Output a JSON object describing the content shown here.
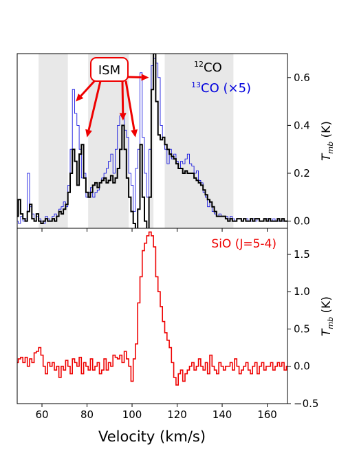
{
  "chart_data": [
    {
      "type": "line",
      "title": "",
      "ylabel": "T",
      "ylabel_sub": "mb",
      "ylabel_unit": " (K)",
      "xlim": [
        49,
        169
      ],
      "ylim": [
        -0.03,
        0.7
      ],
      "yticks": [
        0.0,
        0.2,
        0.4,
        0.6
      ],
      "ytick_labels": [
        "0.0",
        "0.2",
        "0.4",
        "0.6"
      ],
      "legend_position": "top-right",
      "legend": [
        {
          "sup": "12",
          "text": "CO",
          "color": "#000000"
        },
        {
          "sup": "13",
          "text": "CO (×5)",
          "color": "#0000dd"
        }
      ],
      "shaded_regions": [
        [
          58.5,
          71.5
        ],
        [
          80.5,
          98.5
        ],
        [
          108.0,
          109.5
        ],
        [
          114.5,
          145.0
        ]
      ],
      "annotation": {
        "text": "ISM",
        "color": "#ee0000",
        "arrow_targets": [
          [
            75,
            0.5
          ],
          [
            80,
            0.35
          ],
          [
            96,
            0.42
          ],
          [
            101.5,
            0.35
          ],
          [
            107.5,
            0.6
          ]
        ]
      },
      "series": [
        {
          "name": "12CO",
          "color": "#000000",
          "x": [
            49,
            50,
            51,
            52,
            53,
            54,
            55,
            56,
            57,
            58,
            59,
            60,
            61,
            62,
            63,
            64,
            65,
            66,
            67,
            68,
            69,
            70,
            71,
            72,
            73,
            74,
            75,
            76,
            77,
            78,
            79,
            80,
            81,
            82,
            83,
            84,
            85,
            86,
            87,
            88,
            89,
            90,
            91,
            92,
            93,
            94,
            95,
            96,
            97,
            98,
            99,
            100,
            101,
            102,
            103,
            104,
            105,
            106,
            107,
            108,
            109,
            110,
            111,
            112,
            113,
            114,
            115,
            116,
            117,
            118,
            119,
            120,
            121,
            122,
            123,
            124,
            125,
            126,
            127,
            128,
            129,
            130,
            131,
            132,
            133,
            134,
            135,
            136,
            137,
            138,
            139,
            140,
            141,
            142,
            143,
            144,
            145,
            146,
            147,
            148,
            149,
            150,
            151,
            152,
            153,
            154,
            155,
            156,
            157,
            158,
            159,
            160,
            161,
            162,
            163,
            164,
            165,
            166,
            167,
            168,
            169
          ],
          "y": [
            0.02,
            0.09,
            0.03,
            0.01,
            0.0,
            0.04,
            0.07,
            0.01,
            0.0,
            0.03,
            0.0,
            -0.01,
            0.0,
            0.01,
            0.0,
            0.0,
            0.01,
            0.0,
            0.02,
            0.04,
            0.03,
            0.05,
            0.07,
            0.12,
            0.2,
            0.3,
            0.25,
            0.15,
            0.28,
            0.32,
            0.18,
            0.12,
            0.1,
            0.12,
            0.15,
            0.16,
            0.14,
            0.16,
            0.17,
            0.18,
            0.16,
            0.17,
            0.19,
            0.16,
            0.18,
            0.22,
            0.3,
            0.4,
            0.3,
            0.18,
            0.1,
            0.04,
            -0.01,
            -0.06,
            0.05,
            0.32,
            0.1,
            0.0,
            -0.04,
            0.1,
            0.55,
            0.7,
            0.5,
            0.36,
            0.34,
            0.35,
            0.32,
            0.3,
            0.28,
            0.27,
            0.26,
            0.24,
            0.22,
            0.22,
            0.2,
            0.21,
            0.2,
            0.2,
            0.2,
            0.18,
            0.17,
            0.16,
            0.15,
            0.13,
            0.11,
            0.09,
            0.08,
            0.06,
            0.04,
            0.02,
            0.02,
            0.02,
            0.02,
            0.01,
            0.0,
            0.01,
            0.0,
            0.0,
            0.01,
            0.01,
            0.0,
            0.01,
            0.0,
            0.0,
            0.01,
            0.0,
            0.01,
            0.01,
            0.0,
            0.0,
            0.01,
            0.0,
            0.01,
            0.0,
            0.0,
            0.0,
            0.01,
            0.0,
            0.01,
            0.0,
            0.0
          ]
        },
        {
          "name": "13CO (×5)",
          "color": "#0000dd",
          "x": [
            49,
            50,
            51,
            52,
            53,
            54,
            55,
            56,
            57,
            58,
            59,
            60,
            61,
            62,
            63,
            64,
            65,
            66,
            67,
            68,
            69,
            70,
            71,
            72,
            73,
            74,
            75,
            76,
            77,
            78,
            79,
            80,
            81,
            82,
            83,
            84,
            85,
            86,
            87,
            88,
            89,
            90,
            91,
            92,
            93,
            94,
            95,
            96,
            97,
            98,
            99,
            100,
            101,
            102,
            103,
            104,
            105,
            106,
            107,
            108,
            109,
            110,
            111,
            112,
            113,
            114,
            115,
            116,
            117,
            118,
            119,
            120,
            121,
            122,
            123,
            124,
            125,
            126,
            127,
            128,
            129,
            130,
            131,
            132,
            133,
            134,
            135,
            136,
            137,
            138,
            139,
            140,
            141,
            142,
            143,
            144,
            145,
            146,
            147,
            148,
            149,
            150,
            151,
            152,
            153,
            154,
            155,
            156,
            157,
            158,
            159,
            160,
            161,
            162,
            163,
            164,
            165,
            166,
            167,
            168,
            169
          ],
          "y": [
            0.0,
            -0.01,
            0.02,
            0.0,
            0.01,
            0.2,
            0.06,
            0.03,
            0.0,
            0.02,
            0.01,
            0.0,
            -0.01,
            0.02,
            0.01,
            0.0,
            0.02,
            0.03,
            0.02,
            0.05,
            0.06,
            0.08,
            0.06,
            0.15,
            0.3,
            0.55,
            0.45,
            0.4,
            0.3,
            0.18,
            0.2,
            0.1,
            0.12,
            0.14,
            0.1,
            0.12,
            0.13,
            0.16,
            0.18,
            0.2,
            0.22,
            0.25,
            0.28,
            0.2,
            0.3,
            0.4,
            0.44,
            0.45,
            0.38,
            0.35,
            0.2,
            0.15,
            0.04,
            0.22,
            0.3,
            0.62,
            0.35,
            0.2,
            0.1,
            0.3,
            0.65,
            0.68,
            0.66,
            0.6,
            0.4,
            0.35,
            0.3,
            0.24,
            0.3,
            0.26,
            0.28,
            0.25,
            0.22,
            0.25,
            0.24,
            0.26,
            0.28,
            0.24,
            0.23,
            0.2,
            0.21,
            0.17,
            0.16,
            0.12,
            0.1,
            0.06,
            0.08,
            0.04,
            0.03,
            0.02,
            0.03,
            0.02,
            0.02,
            0.02,
            0.01,
            0.02,
            0.01,
            0.0,
            0.01,
            0.01,
            0.0,
            0.01,
            0.01,
            0.0,
            0.0,
            0.01,
            0.0,
            0.01,
            0.0,
            0.0,
            0.01,
            0.01,
            0.0,
            0.0,
            0.01,
            0.0,
            0.0,
            0.0,
            0.0,
            0.0,
            0.0
          ]
        }
      ]
    },
    {
      "type": "line",
      "title": "",
      "xlabel": "Velocity (km/s)",
      "xlim": [
        49,
        169
      ],
      "xticks": [
        60,
        80,
        100,
        120,
        140,
        160
      ],
      "xtick_labels": [
        "60",
        "80",
        "100",
        "120",
        "140",
        "160"
      ],
      "ylabel": "T",
      "ylabel_sub": "mb",
      "ylabel_unit": " (K)",
      "ylim": [
        -0.5,
        1.85
      ],
      "yticks": [
        -0.5,
        0.0,
        0.5,
        1.0,
        1.5
      ],
      "ytick_labels": [
        "−0.5",
        "0.0",
        "0.5",
        "1.0",
        "1.5"
      ],
      "legend_position": "top-right",
      "legend": [
        {
          "text": "SiO (J=5-4)",
          "color": "#ee0000"
        }
      ],
      "series": [
        {
          "name": "SiO (J=5-4)",
          "color": "#ee0000",
          "x": [
            49,
            50,
            51,
            52,
            53,
            54,
            55,
            56,
            57,
            58,
            59,
            60,
            61,
            62,
            63,
            64,
            65,
            66,
            67,
            68,
            69,
            70,
            71,
            72,
            73,
            74,
            75,
            76,
            77,
            78,
            79,
            80,
            81,
            82,
            83,
            84,
            85,
            86,
            87,
            88,
            89,
            90,
            91,
            92,
            93,
            94,
            95,
            96,
            97,
            98,
            99,
            100,
            101,
            102,
            103,
            104,
            105,
            106,
            107,
            108,
            109,
            110,
            111,
            112,
            113,
            114,
            115,
            116,
            117,
            118,
            119,
            120,
            121,
            122,
            123,
            124,
            125,
            126,
            127,
            128,
            129,
            130,
            131,
            132,
            133,
            134,
            135,
            136,
            137,
            138,
            139,
            140,
            141,
            142,
            143,
            144,
            145,
            146,
            147,
            148,
            149,
            150,
            151,
            152,
            153,
            154,
            155,
            156,
            157,
            158,
            159,
            160,
            161,
            162,
            163,
            164,
            165,
            166,
            167,
            168,
            169
          ],
          "y": [
            0.05,
            0.1,
            0.12,
            0.05,
            0.12,
            0.0,
            0.1,
            0.05,
            0.18,
            0.2,
            0.25,
            0.15,
            0.0,
            -0.1,
            0.05,
            0.0,
            0.05,
            -0.05,
            0.0,
            -0.15,
            0.0,
            -0.05,
            0.08,
            0.0,
            -0.1,
            0.1,
            0.05,
            0.0,
            0.12,
            -0.1,
            0.05,
            0.0,
            -0.05,
            0.1,
            -0.05,
            0.0,
            0.05,
            -0.1,
            -0.05,
            0.1,
            -0.05,
            0.05,
            0.0,
            0.15,
            0.12,
            0.1,
            0.15,
            0.05,
            0.2,
            0.1,
            0.0,
            -0.2,
            0.1,
            0.3,
            0.85,
            1.2,
            1.55,
            1.65,
            1.75,
            1.8,
            1.75,
            1.6,
            1.2,
            1.0,
            0.8,
            0.6,
            0.45,
            0.35,
            0.25,
            0.05,
            -0.15,
            -0.25,
            -0.1,
            -0.05,
            -0.2,
            -0.1,
            -0.05,
            0.0,
            0.05,
            -0.05,
            0.0,
            0.1,
            0.0,
            -0.05,
            0.05,
            -0.1,
            0.15,
            0.0,
            -0.05,
            -0.1,
            0.05,
            0.0,
            -0.05,
            0.0,
            0.0,
            0.05,
            -0.05,
            0.1,
            0.0,
            -0.1,
            -0.05,
            0.0,
            0.05,
            -0.05,
            -0.1,
            0.0,
            0.05,
            -0.1,
            0.0,
            0.05,
            -0.05,
            0.0,
            0.0,
            0.05,
            -0.05,
            0.0,
            0.05,
            0.0,
            0.05,
            -0.05,
            0.0
          ]
        }
      ]
    }
  ]
}
